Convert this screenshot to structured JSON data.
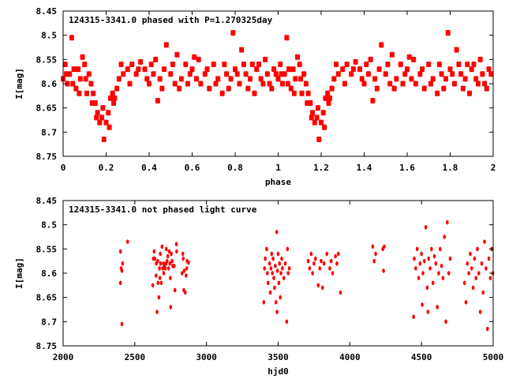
{
  "chart_data": [
    {
      "type": "scatter",
      "title": "124315-3341.0 phased with P=1.270325day",
      "xlabel": "phase",
      "ylabel": "I[mag]",
      "xlim": [
        0,
        2
      ],
      "ylim": [
        8.45,
        8.75
      ],
      "y_inverted": true,
      "grid": false,
      "xticks": [
        "0",
        "0.2",
        "0.4",
        "0.6",
        "0.8",
        "1",
        "1.2",
        "1.4",
        "1.6",
        "1.8",
        "2"
      ],
      "yticks": [
        "8.45",
        "8.5",
        "8.55",
        "8.6",
        "8.65",
        "8.7",
        "8.75"
      ],
      "repeat_period": 1,
      "color": "#ff0000",
      "x": [
        0.0,
        0.01,
        0.015,
        0.02,
        0.03,
        0.04,
        0.045,
        0.05,
        0.06,
        0.07,
        0.075,
        0.08,
        0.09,
        0.1,
        0.105,
        0.11,
        0.12,
        0.13,
        0.135,
        0.14,
        0.15,
        0.155,
        0.16,
        0.17,
        0.18,
        0.185,
        0.19,
        0.2,
        0.21,
        0.215,
        0.22,
        0.23,
        0.235,
        0.24,
        0.25,
        0.26,
        0.27,
        0.28,
        0.3,
        0.31,
        0.32,
        0.34,
        0.35,
        0.36,
        0.38,
        0.39,
        0.4,
        0.41,
        0.42,
        0.43,
        0.44,
        0.45,
        0.46,
        0.47,
        0.48,
        0.5,
        0.51,
        0.52,
        0.53,
        0.54,
        0.55,
        0.57,
        0.58,
        0.59,
        0.6,
        0.61,
        0.62,
        0.63,
        0.64,
        0.66,
        0.67,
        0.68,
        0.7,
        0.71,
        0.72,
        0.74,
        0.75,
        0.76,
        0.77,
        0.78,
        0.79,
        0.8,
        0.81,
        0.82,
        0.83,
        0.84,
        0.85,
        0.86,
        0.87,
        0.88,
        0.89,
        0.9,
        0.91,
        0.92,
        0.93,
        0.94,
        0.95,
        0.96,
        0.97,
        0.98,
        0.99
      ],
      "y": [
        8.59,
        8.56,
        8.58,
        8.6,
        8.58,
        8.505,
        8.6,
        8.57,
        8.61,
        8.57,
        8.62,
        8.59,
        8.545,
        8.56,
        8.59,
        8.62,
        8.58,
        8.6,
        8.64,
        8.62,
        8.64,
        8.67,
        8.66,
        8.68,
        8.67,
        8.65,
        8.715,
        8.68,
        8.66,
        8.69,
        8.63,
        8.62,
        8.64,
        8.63,
        8.61,
        8.59,
        8.56,
        8.58,
        8.57,
        8.6,
        8.56,
        8.58,
        8.57,
        8.555,
        8.57,
        8.59,
        8.6,
        8.56,
        8.58,
        8.55,
        8.635,
        8.59,
        8.61,
        8.57,
        8.52,
        8.58,
        8.56,
        8.6,
        8.54,
        8.61,
        8.59,
        8.56,
        8.6,
        8.58,
        8.57,
        8.545,
        8.59,
        8.55,
        8.6,
        8.58,
        8.57,
        8.61,
        8.56,
        8.6,
        8.59,
        8.62,
        8.56,
        8.58,
        8.61,
        8.59,
        8.495,
        8.57,
        8.58,
        8.6,
        8.53,
        8.56,
        8.58,
        8.61,
        8.59,
        8.56,
        8.62,
        8.57,
        8.56,
        8.59,
        8.6,
        8.55,
        8.58,
        8.6,
        8.61,
        8.57,
        8.58
      ]
    },
    {
      "type": "scatter",
      "title": "124315-3341.0 not phased light curve",
      "xlabel": "hjd0",
      "ylabel": "I[mag]",
      "xlim": [
        2000,
        5000
      ],
      "ylim": [
        8.45,
        8.75
      ],
      "y_inverted": true,
      "grid": false,
      "xticks": [
        "2000",
        "2500",
        "3000",
        "3500",
        "4000",
        "4500",
        "5000"
      ],
      "yticks": [
        "8.45",
        "8.5",
        "8.55",
        "8.6",
        "8.65",
        "8.7",
        "8.75"
      ],
      "color": "#ff0000",
      "x": [
        2400,
        2400,
        2405,
        2410,
        2410,
        2415,
        2450,
        2625,
        2630,
        2635,
        2640,
        2648,
        2650,
        2655,
        2660,
        2662,
        2668,
        2672,
        2675,
        2678,
        2680,
        2685,
        2690,
        2695,
        2700,
        2702,
        2708,
        2712,
        2718,
        2720,
        2725,
        2730,
        2735,
        2740,
        2745,
        2748,
        2750,
        2755,
        2760,
        2765,
        2775,
        2780,
        2790,
        2792,
        2830,
        2835,
        2838,
        2842,
        2845,
        2852,
        2858,
        2862,
        2865,
        2875,
        3400,
        3405,
        3410,
        3420,
        3425,
        3430,
        3440,
        3445,
        3450,
        3455,
        3460,
        3465,
        3470,
        3475,
        3480,
        3485,
        3490,
        3492,
        3495,
        3500,
        3505,
        3510,
        3515,
        3520,
        3525,
        3530,
        3540,
        3550,
        3560,
        3565,
        3570,
        3578,
        3710,
        3720,
        3730,
        3740,
        3750,
        3760,
        3780,
        3790,
        3800,
        3810,
        3820,
        3840,
        3860,
        3870,
        3880,
        3900,
        3910,
        3920,
        3935,
        4160,
        4170,
        4180,
        4230,
        4235,
        4240,
        4445,
        4450,
        4460,
        4470,
        4480,
        4490,
        4500,
        4505,
        4510,
        4520,
        4530,
        4540,
        4545,
        4550,
        4560,
        4570,
        4580,
        4590,
        4600,
        4610,
        4620,
        4630,
        4640,
        4650,
        4660,
        4670,
        4680,
        4690,
        4700,
        4800,
        4810,
        4820,
        4830,
        4840,
        4850,
        4860,
        4870,
        4880,
        4890,
        4900,
        4910,
        4920,
        4930,
        4940,
        4950,
        4960,
        4970,
        4980,
        4990,
        4998
      ],
      "y": [
        8.555,
        8.62,
        8.59,
        8.595,
        8.705,
        8.58,
        8.535,
        8.625,
        8.57,
        8.555,
        8.57,
        8.605,
        8.58,
        8.68,
        8.575,
        8.62,
        8.65,
        8.59,
        8.61,
        8.56,
        8.58,
        8.62,
        8.545,
        8.59,
        8.58,
        8.6,
        8.585,
        8.59,
        8.58,
        8.55,
        8.575,
        8.565,
        8.59,
        8.555,
        8.58,
        8.61,
        8.67,
        8.56,
        8.575,
        8.585,
        8.585,
        8.635,
        8.54,
        8.555,
        8.6,
        8.56,
        8.57,
        8.635,
        8.595,
        8.64,
        8.605,
        8.59,
        8.575,
        8.578,
        8.66,
        8.59,
        8.57,
        8.55,
        8.6,
        8.62,
        8.58,
        8.64,
        8.59,
        8.56,
        8.6,
        8.57,
        8.61,
        8.63,
        8.585,
        8.66,
        8.515,
        8.68,
        8.595,
        8.56,
        8.62,
        8.58,
        8.65,
        8.6,
        8.57,
        8.59,
        8.61,
        8.58,
        8.7,
        8.55,
        8.6,
        8.59,
        8.575,
        8.59,
        8.56,
        8.6,
        8.58,
        8.57,
        8.625,
        8.59,
        8.575,
        8.63,
        8.58,
        8.56,
        8.59,
        8.575,
        8.6,
        8.565,
        8.58,
        8.56,
        8.64,
        8.545,
        8.575,
        8.56,
        8.55,
        8.595,
        8.545,
        8.69,
        8.57,
        8.59,
        8.55,
        8.61,
        8.58,
        8.56,
        8.665,
        8.6,
        8.575,
        8.505,
        8.63,
        8.68,
        8.57,
        8.59,
        8.55,
        8.62,
        8.565,
        8.58,
        8.67,
        8.6,
        8.55,
        8.585,
        8.61,
        8.525,
        8.7,
        8.495,
        8.6,
        8.57,
        8.62,
        8.66,
        8.58,
        8.6,
        8.56,
        8.59,
        8.63,
        8.57,
        8.61,
        8.55,
        8.6,
        8.68,
        8.58,
        8.64,
        8.535,
        8.59,
        8.715,
        8.57,
        8.61,
        8.55,
        8.6
      ]
    }
  ]
}
